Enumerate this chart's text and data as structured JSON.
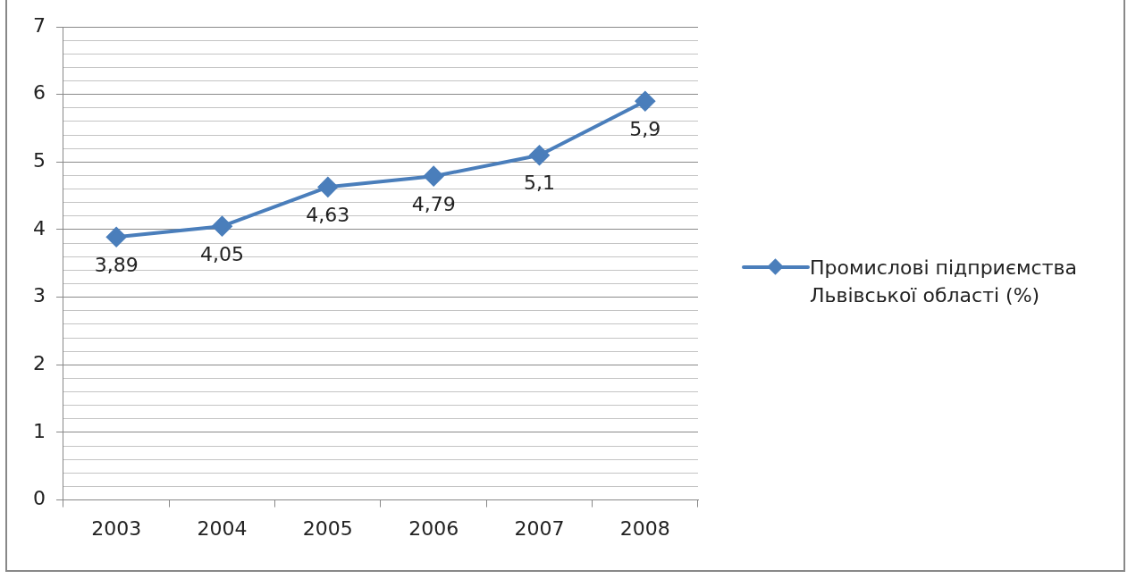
{
  "chart_data": {
    "type": "line",
    "categories": [
      "2003",
      "2004",
      "2005",
      "2006",
      "2007",
      "2008"
    ],
    "series": [
      {
        "name": "Промислові підприємства Львівської області (%)",
        "color": "#4a7ebb",
        "values": [
          3.89,
          4.05,
          4.63,
          4.79,
          5.1,
          5.9
        ],
        "value_labels": [
          "3,89",
          "4,05",
          "4,63",
          "4,79",
          "5,1",
          "5,9"
        ]
      }
    ],
    "ylim": [
      0,
      7
    ],
    "yticks": [
      0,
      {
        "value": 0.2,
        "label": null
      },
      {
        "value": 0.4,
        "label": null
      },
      {
        "value": 0.6,
        "label": null
      },
      {
        "value": 0.8,
        "label": null
      },
      1,
      {
        "value": 1.2,
        "label": null
      },
      {
        "value": 1.4,
        "label": null
      },
      {
        "value": 1.6,
        "label": null
      },
      {
        "value": 1.8,
        "label": null
      },
      2,
      {
        "value": 2.2,
        "label": null
      },
      {
        "value": 2.4,
        "label": null
      },
      {
        "value": 2.6,
        "label": null
      },
      {
        "value": 2.8,
        "label": null
      },
      3,
      {
        "value": 3.2,
        "label": null
      },
      {
        "value": 3.4,
        "label": null
      },
      {
        "value": 3.6,
        "label": null
      },
      {
        "value": 3.8,
        "label": null
      },
      4,
      {
        "value": 4.2,
        "label": null
      },
      {
        "value": 4.4,
        "label": null
      },
      {
        "value": 4.6,
        "label": null
      },
      {
        "value": 4.8,
        "label": null
      },
      5,
      {
        "value": 5.2,
        "label": null
      },
      {
        "value": 5.4,
        "label": null
      },
      {
        "value": 5.6,
        "label": null
      },
      {
        "value": 5.8,
        "label": null
      },
      6,
      {
        "value": 6.2,
        "label": null
      },
      {
        "value": 6.4,
        "label": null
      },
      {
        "value": 6.6,
        "label": null
      },
      {
        "value": 6.8,
        "label": null
      },
      7
    ],
    "grid": "y",
    "legend": "right",
    "marker": "diamond",
    "line_style": "solid"
  }
}
